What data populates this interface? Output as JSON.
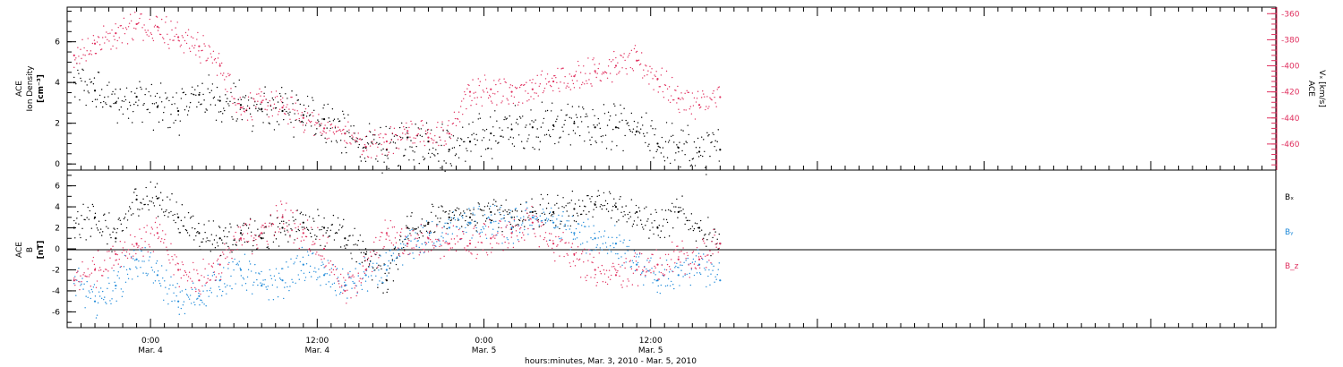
{
  "colors": {
    "black": "#000000",
    "red": "#e0305f",
    "blue": "#1f8ad9"
  },
  "xaxis": {
    "xlim": [
      -6,
      81
    ],
    "ticks": [
      {
        "x": 0,
        "time": "0:00",
        "day": "Mar. 4"
      },
      {
        "x": 12,
        "time": "12:00",
        "day": "Mar. 4"
      },
      {
        "x": 24,
        "time": "0:00",
        "day": "Mar. 5"
      },
      {
        "x": 36,
        "time": "12:00",
        "day": "Mar. 5"
      }
    ],
    "label": "hours:minutes, Mar.  3, 2010 - Mar.  5, 2010"
  },
  "chart_data": [
    {
      "type": "scatter",
      "panel": "top",
      "ylabel_lines": [
        "ACE",
        "Ion Density",
        "[cm⁻³]"
      ],
      "y2label_lines": [
        "ACE",
        "Vₓ [km/s]"
      ],
      "ylim": [
        -0.3,
        7.7
      ],
      "yticks": [
        0,
        2,
        4,
        6
      ],
      "y2lim": [
        -480,
        -355
      ],
      "y2ticks": [
        -360,
        -380,
        -400,
        -420,
        -440,
        -460
      ],
      "series": [
        {
          "color": "black",
          "axis": "left",
          "x": [
            -5.5,
            -4,
            -2.5,
            -1,
            0.5,
            2,
            3.5,
            5,
            6.5,
            8,
            9.5,
            11,
            12.5,
            14,
            15.5,
            17,
            18.5,
            20,
            21.5,
            23,
            24.5,
            26,
            27.5,
            29,
            30.5,
            32,
            33.5,
            35,
            36.5,
            38,
            39.5,
            41
          ],
          "y": [
            4.0,
            3.6,
            3.0,
            3.3,
            2.8,
            2.6,
            3.4,
            3.1,
            2.9,
            2.7,
            2.6,
            2.4,
            2.2,
            1.5,
            0.8,
            0.7,
            1.3,
            1.1,
            0.7,
            1.1,
            1.5,
            1.7,
            1.8,
            1.9,
            2.0,
            1.8,
            1.8,
            1.6,
            1.0,
            0.8,
            0.6,
            0.7
          ]
        },
        {
          "color": "red",
          "axis": "right",
          "x": [
            -5.5,
            -4,
            -2.5,
            -1,
            0.5,
            2,
            3.5,
            5,
            6.5,
            8,
            9.5,
            11,
            12.5,
            14,
            15.5,
            17,
            18.5,
            20,
            21.5,
            23,
            24.5,
            26,
            27.5,
            29,
            30.5,
            32,
            33.5,
            35,
            36.5,
            38,
            39.5,
            41
          ],
          "y": [
            -392,
            -383,
            -375,
            -368,
            -370,
            -378,
            -385,
            -400,
            -432,
            -428,
            -432,
            -440,
            -448,
            -452,
            -462,
            -458,
            -450,
            -455,
            -452,
            -420,
            -418,
            -420,
            -418,
            -412,
            -408,
            -404,
            -400,
            -396,
            -410,
            -425,
            -430,
            -424
          ]
        }
      ]
    },
    {
      "type": "scatter",
      "panel": "bottom",
      "ylabel_lines": [
        "ACE",
        "B",
        "[nT]"
      ],
      "ylim": [
        -7.5,
        7.5
      ],
      "yticks": [
        -6,
        -4,
        -2,
        0,
        2,
        4,
        6
      ],
      "series": [
        {
          "name": "Bₓ",
          "color": "black",
          "x": [
            -5.5,
            -4,
            -2.5,
            -1,
            0.5,
            2,
            3.5,
            5,
            6.5,
            8,
            9.5,
            11,
            12.5,
            14,
            15.5,
            17,
            18.5,
            20,
            21.5,
            23,
            24.5,
            26,
            27.5,
            29,
            30.5,
            32,
            33.5,
            35,
            36.5,
            38,
            39.5,
            41
          ],
          "y": [
            2.0,
            3.0,
            1.0,
            4.7,
            4.8,
            3.0,
            1.5,
            1.0,
            1.5,
            1.0,
            2.0,
            2.5,
            2.0,
            1.0,
            -0.5,
            -3.0,
            2.0,
            2.5,
            3.0,
            3.0,
            3.5,
            3.0,
            3.5,
            3.5,
            3.8,
            4.2,
            4.0,
            3.5,
            2.0,
            3.5,
            2.0,
            0.5
          ]
        },
        {
          "name": "Bᵧ",
          "color": "blue",
          "x": [
            -5.5,
            -4,
            -2.5,
            -1,
            0.5,
            2,
            3.5,
            5,
            6.5,
            8,
            9.5,
            11,
            12.5,
            14,
            15.5,
            17,
            18.5,
            20,
            21.5,
            23,
            24.5,
            26,
            27.5,
            29,
            30.5,
            32,
            33.5,
            35,
            36.5,
            38,
            39.5,
            41
          ],
          "y": [
            -3.0,
            -5.0,
            -3.5,
            -1.0,
            -2.5,
            -5.0,
            -4.5,
            -3.0,
            -2.0,
            -3.5,
            -3.0,
            -1.5,
            -2.5,
            -3.5,
            -2.5,
            -2.0,
            0.5,
            1.0,
            2.0,
            2.5,
            2.5,
            2.0,
            3.0,
            2.5,
            1.5,
            1.0,
            0.5,
            -1.5,
            -3.0,
            -2.5,
            -1.5,
            -3.0
          ]
        },
        {
          "name": "B_z",
          "color": "red",
          "x": [
            -5.5,
            -4,
            -2.5,
            -1,
            0.5,
            2,
            3.5,
            5,
            6.5,
            8,
            9.5,
            11,
            12.5,
            14,
            15.5,
            17,
            18.5,
            20,
            21.5,
            23,
            24.5,
            26,
            27.5,
            29,
            30.5,
            32,
            33.5,
            35,
            36.5,
            38,
            39.5,
            41
          ],
          "y": [
            -3.0,
            -2.0,
            -0.5,
            0.5,
            1.5,
            -2.0,
            -3.0,
            -1.5,
            1.0,
            1.5,
            3.0,
            1.5,
            0.0,
            -4.0,
            -2.0,
            1.5,
            0.5,
            1.0,
            0.5,
            0.5,
            1.0,
            1.5,
            2.5,
            0.5,
            -0.5,
            -2.0,
            -2.5,
            -2.0,
            -1.5,
            -1.0,
            -1.0,
            0.5
          ]
        }
      ]
    }
  ]
}
